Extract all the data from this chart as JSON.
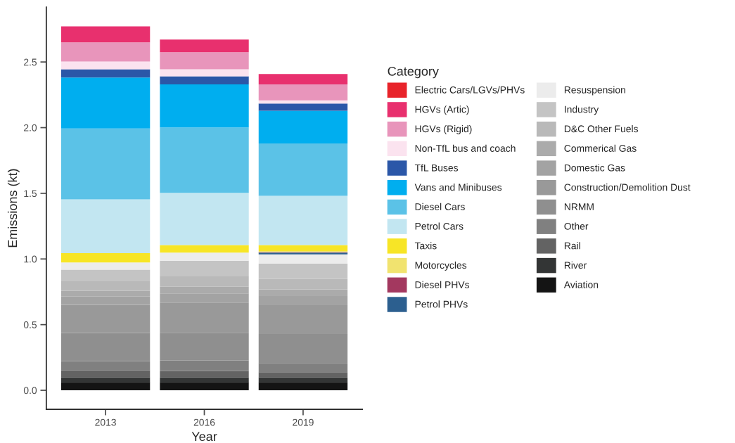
{
  "chart_data": {
    "type": "bar",
    "stacked": true,
    "xlabel": "Year",
    "ylabel": "Emissions (kt)",
    "legend_title": "Category",
    "legend": "right",
    "grid": false,
    "categories": [
      "2013",
      "2016",
      "2019"
    ],
    "ylim": [
      -0.145,
      2.918
    ],
    "yticks": [
      {
        "value": 0,
        "label": "0.0"
      },
      {
        "value": 0.5,
        "label": "0.5"
      },
      {
        "value": 1,
        "label": "1.0"
      },
      {
        "value": 1.5,
        "label": "1.5"
      },
      {
        "value": 2,
        "label": "2.0"
      },
      {
        "value": 2.5,
        "label": "2.5"
      }
    ],
    "series": [
      {
        "name": "Aviation",
        "color": "#141414",
        "values": [
          0.063,
          0.063,
          0.063
        ]
      },
      {
        "name": "River",
        "color": "#333535",
        "values": [
          0.035,
          0.035,
          0.035
        ]
      },
      {
        "name": "Rail",
        "color": "#636363",
        "values": [
          0.054,
          0.05,
          0.04
        ]
      },
      {
        "name": "Other",
        "color": "#808080",
        "values": [
          0.071,
          0.08,
          0.07
        ]
      },
      {
        "name": "NRMM",
        "color": "#8f8f8f",
        "values": [
          0.214,
          0.21,
          0.22
        ]
      },
      {
        "name": "Construction/Demolition Dust",
        "color": "#999999",
        "values": [
          0.214,
          0.23,
          0.22
        ]
      },
      {
        "name": "Domestic Gas",
        "color": "#a3a3a3",
        "values": [
          0.063,
          0.07,
          0.07
        ]
      },
      {
        "name": "Commerical Gas",
        "color": "#ababab",
        "values": [
          0.044,
          0.05,
          0.05
        ]
      },
      {
        "name": "D&C Other Fuels",
        "color": "#b9b9b9",
        "values": [
          0.072,
          0.08,
          0.08
        ]
      },
      {
        "name": "Industry",
        "color": "#c4c4c4",
        "values": [
          0.089,
          0.119,
          0.116
        ]
      },
      {
        "name": "Resuspension",
        "color": "#ececec",
        "values": [
          0.054,
          0.061,
          0.071
        ]
      },
      {
        "name": "Petrol PHVs",
        "color": "#2c5f8f",
        "values": [
          0,
          0,
          0.014
        ]
      },
      {
        "name": "Diesel PHVs",
        "color": "#a3385f",
        "values": [
          0,
          0,
          0.004
        ]
      },
      {
        "name": "Motorcycles",
        "color": "#f1e36f",
        "values": [
          0,
          0,
          0.008
        ]
      },
      {
        "name": "Taxis",
        "color": "#f7e526",
        "values": [
          0.071,
          0.058,
          0.045
        ]
      },
      {
        "name": "Petrol Cars",
        "color": "#c2e6f1",
        "values": [
          0.41,
          0.398,
          0.375
        ]
      },
      {
        "name": "Diesel Cars",
        "color": "#5bc2e7",
        "values": [
          0.539,
          0.498,
          0.398
        ]
      },
      {
        "name": "Vans and Minibuses",
        "color": "#00aeef",
        "values": [
          0.389,
          0.327,
          0.25
        ]
      },
      {
        "name": "TfL Buses",
        "color": "#2b57a8",
        "values": [
          0.063,
          0.062,
          0.054
        ]
      },
      {
        "name": "Non-TfL bus and coach",
        "color": "#fbe3ef",
        "values": [
          0.059,
          0.054,
          0.024
        ]
      },
      {
        "name": "HGVs (Rigid)",
        "color": "#e895bb",
        "values": [
          0.146,
          0.13,
          0.122
        ]
      },
      {
        "name": "HGVs (Artic)",
        "color": "#e8306e",
        "values": [
          0.121,
          0.096,
          0.08
        ]
      },
      {
        "name": "Electric Cars/LGVs/PHVs",
        "color": "#e8232a",
        "values": [
          0,
          0,
          0
        ]
      }
    ]
  }
}
